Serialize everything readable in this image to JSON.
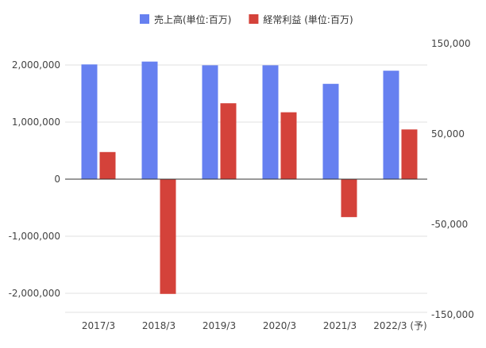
{
  "chart_data": {
    "type": "bar",
    "categories": [
      "2017/3",
      "2018/3",
      "2019/3",
      "2020/3",
      "2021/3",
      "2022/3 (予)"
    ],
    "series": [
      {
        "name": "売上高(単位:百万)",
        "axis": "left",
        "color": "#6680f0",
        "values": [
          2010000,
          2060000,
          1995000,
          1995000,
          1670000,
          1900000
        ]
      },
      {
        "name": "経常利益 (単位:百万)",
        "axis": "right",
        "color": "#d4423a",
        "values": [
          30000,
          -127000,
          84000,
          74000,
          -42000,
          55000
        ]
      }
    ],
    "left_axis": {
      "ticks": [
        2000000,
        1000000,
        0,
        -1000000,
        -2000000
      ],
      "tick_labels": [
        "2,000,000",
        "1,000,000",
        "0",
        "-1,000,000",
        "-2,000,000"
      ]
    },
    "right_axis": {
      "ticks": [
        150000,
        50000,
        -50000,
        -150000
      ],
      "tick_labels": [
        "150,000",
        "50,000",
        "-50,000",
        "-150,000"
      ]
    },
    "legend_position": "top",
    "grid": true
  }
}
